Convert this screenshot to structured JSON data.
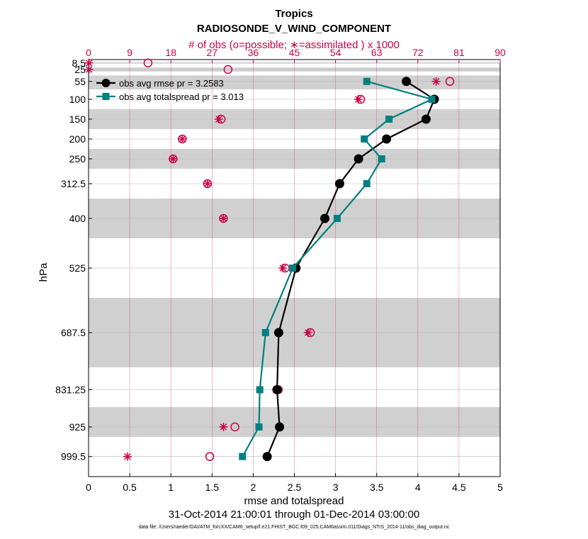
{
  "chart_data": {
    "type": "line",
    "title": "Tropics",
    "subtitle": "RADIOSONDE_V_WIND_COMPONENT",
    "top_axis_label": "# of obs (o=possible; ∗=assimilated ) x 1000",
    "xlabel": "rmse and totalspread",
    "ylabel": "hPa",
    "date_range": "31-Oct-2014 21:00:01 through 01-Dec-2014 03:00:00",
    "footer": "data file: /Users/raeder/DAI/ATM_forcXX/CAM6_setup/f.e21.FHIST_BGC.f09_025.CAM6assim.011/Diags_NTrS_2014-11/obs_diag_output.nc",
    "xlim": [
      0,
      5
    ],
    "x_ticks": [
      "0",
      "0.5",
      "1",
      "1.5",
      "2",
      "2.5",
      "3",
      "3.5",
      "4",
      "4.5",
      "5"
    ],
    "top_xlim": [
      0,
      90
    ],
    "top_ticks": [
      "0",
      "9",
      "18",
      "27",
      "36",
      "45",
      "54",
      "63",
      "72",
      "81",
      "90"
    ],
    "ylim": [
      1050,
      0
    ],
    "y_direction": "reversed",
    "levels": [
      8.5,
      25,
      55,
      100,
      150,
      200,
      250,
      312.5,
      400,
      525,
      687.5,
      831.25,
      925,
      999.5
    ],
    "level_labels": [
      "8.5",
      "25",
      "55",
      "100",
      "150",
      "200",
      "250",
      "312.5",
      "400",
      "525",
      "687.5",
      "831.25",
      "925",
      "999.5"
    ],
    "bands": [
      [
        7,
        10
      ],
      [
        20,
        30
      ],
      [
        40,
        75
      ],
      [
        125,
        175
      ],
      [
        225,
        275
      ],
      [
        350,
        450
      ],
      [
        600,
        775
      ],
      [
        875,
        950
      ]
    ],
    "series": [
      {
        "name": "obs avg rmse pr = 3.2583",
        "color": "#000000",
        "marker": "circle",
        "levels": [
          55,
          100,
          150,
          200,
          250,
          312.5,
          400,
          525,
          687.5,
          831.25,
          925,
          999.5
        ],
        "values": [
          3.86,
          4.2,
          4.1,
          3.62,
          3.28,
          3.05,
          2.87,
          2.52,
          2.31,
          2.29,
          2.32,
          2.17
        ]
      },
      {
        "name": "obs avg totalspread pr = 3.013",
        "color": "#008080",
        "marker": "square",
        "levels": [
          55,
          100,
          150,
          200,
          250,
          312.5,
          400,
          525,
          687.5,
          831.25,
          925,
          999.5
        ],
        "values": [
          3.38,
          4.17,
          3.65,
          3.35,
          3.56,
          3.38,
          3.02,
          2.48,
          2.15,
          2.08,
          2.07,
          1.87
        ]
      }
    ],
    "obs_counts": {
      "color": "#cc0044",
      "levels": [
        8.5,
        25,
        55,
        100,
        150,
        200,
        250,
        312.5,
        400,
        525,
        687.5,
        831.25,
        925,
        999.5
      ],
      "possible": [
        13,
        30.5,
        79,
        59.5,
        29,
        20.5,
        18.5,
        26,
        29.5,
        43,
        48.5,
        41.5,
        32,
        26.5
      ],
      "assimilated": [
        0.1,
        0.1,
        76,
        59,
        28.5,
        20.5,
        18.5,
        26,
        29.5,
        42.5,
        48,
        41,
        29.5,
        8.5
      ]
    }
  }
}
